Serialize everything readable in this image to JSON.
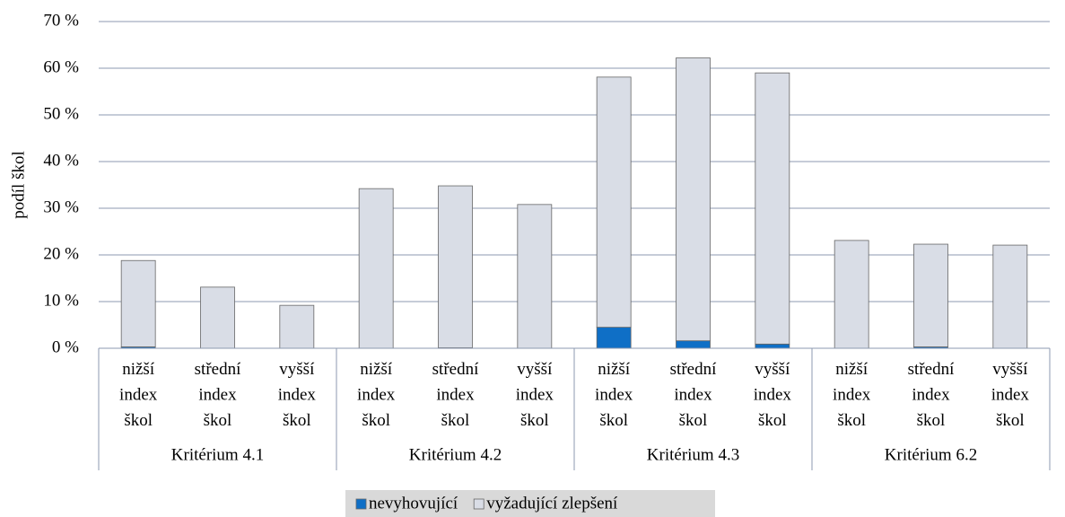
{
  "chart_data": {
    "type": "stacked_bar",
    "y_label": "podíl škol",
    "categories": [
      "nižší index škol",
      "střední index škol",
      "vyšší index škol",
      "nižší index škol",
      "střední index škol",
      "vyšší index škol",
      "nižší index škol",
      "střední index škol",
      "vyšší index škol",
      "nižší index škol",
      "střední index škol",
      "vyšší index škol"
    ],
    "groups": [
      "Kritérium 4.1",
      "Kritérium 4.2",
      "Kritérium 4.3",
      "Kritérium 6.2"
    ],
    "series": [
      {
        "name": "nevyhovující",
        "color": "#0f6fc6",
        "values": [
          0.3,
          0,
          0,
          0,
          0.1,
          0,
          4.5,
          1.6,
          0.9,
          0,
          0.3,
          0
        ]
      },
      {
        "name": "vyžadující zlepšení",
        "color": "#d9dde6",
        "values": [
          18.5,
          13.1,
          9.2,
          34.2,
          34.7,
          30.8,
          53.6,
          60.6,
          58.1,
          23.1,
          22.0,
          22.1
        ]
      }
    ],
    "ylim": [
      0,
      70
    ],
    "yticks": [
      {
        "value": 0,
        "label": "0 %"
      },
      {
        "value": 10,
        "label": "10 %"
      },
      {
        "value": 20,
        "label": "20 %"
      },
      {
        "value": 30,
        "label": "30 %"
      },
      {
        "value": 40,
        "label": "40 %"
      },
      {
        "value": 50,
        "label": "50 %"
      },
      {
        "value": 60,
        "label": "60 %"
      },
      {
        "value": 70,
        "label": "70 %"
      }
    ],
    "grid": true,
    "legend": "bottom"
  }
}
